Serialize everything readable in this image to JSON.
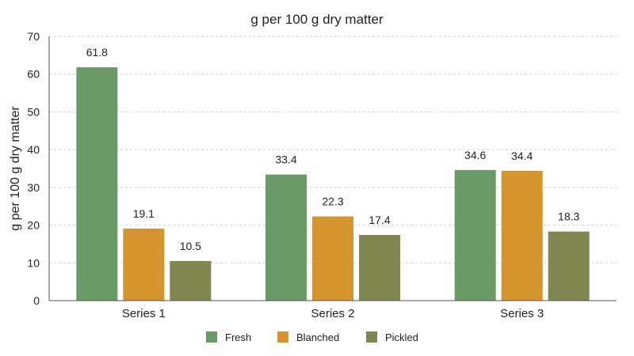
{
  "chart_data": {
    "type": "bar",
    "title": "g per 100 g dry matter",
    "xlabel": "",
    "ylabel": "g per 100 g dry matter",
    "ylim": [
      0,
      70
    ],
    "yticks": [
      0,
      10,
      20,
      30,
      40,
      50,
      60,
      70
    ],
    "grid": true,
    "legend_position": "bottom",
    "categories": [
      "Series 1",
      "Series 2",
      "Series 3"
    ],
    "series": [
      {
        "name": "Fresh",
        "color": "#6a9a65",
        "values": [
          61.8,
          33.4,
          34.6
        ],
        "labels": [
          "61.8",
          "33.4",
          "34.6"
        ]
      },
      {
        "name": "Blanched",
        "color": "#d4952e",
        "values": [
          19.1,
          22.3,
          34.4
        ],
        "labels": [
          "19.1",
          "22.3",
          "34.4"
        ]
      },
      {
        "name": "Pickled",
        "color": "#818550",
        "values": [
          10.5,
          17.4,
          18.3
        ],
        "labels": [
          "10.5",
          "17.4",
          "18.3"
        ]
      }
    ]
  }
}
